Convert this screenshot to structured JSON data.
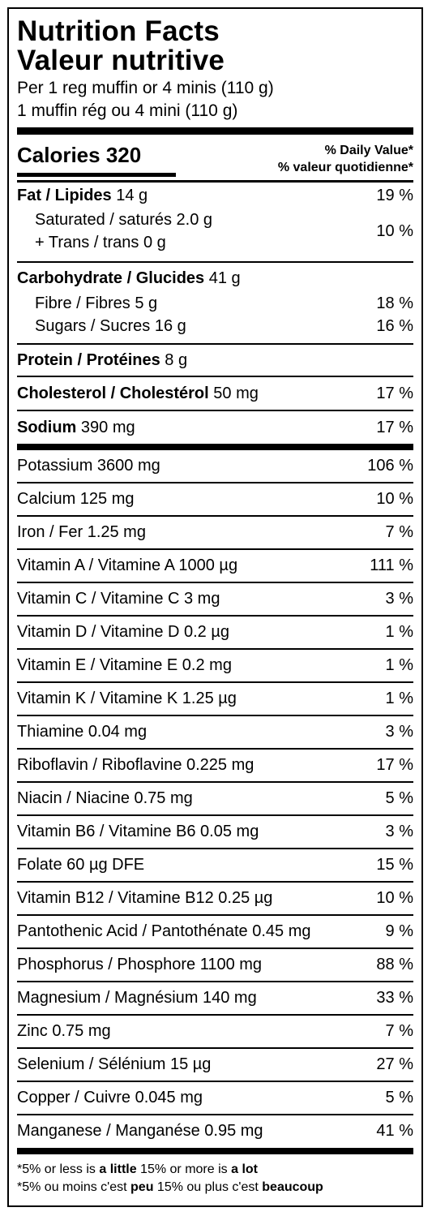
{
  "title_en": "Nutrition Facts",
  "title_fr": "Valeur nutritive",
  "serving_en": "Per 1 reg muffin or 4 minis (110 g)",
  "serving_fr": "1 muffin rég ou 4 mini (110 g)",
  "calories_label": "Calories 320",
  "dv_en": "% Daily Value*",
  "dv_fr": "% valeur quotidienne*",
  "fat": {
    "label": "Fat / Lipides",
    "amount": "14 g",
    "pct": "19 %"
  },
  "saturated": "Saturated / saturés 2.0 g",
  "trans": "+ Trans / trans 0 g",
  "sat_trans_pct": "10 %",
  "carb": {
    "label": "Carbohydrate / Glucides",
    "amount": "41 g"
  },
  "fibre": {
    "label": "Fibre / Fibres 5 g",
    "pct": "18 %"
  },
  "sugars": {
    "label": "Sugars / Sucres 16 g",
    "pct": "16 %"
  },
  "protein": {
    "label": "Protein / Protéines",
    "amount": "8 g"
  },
  "cholesterol": {
    "label": "Cholesterol / Cholestérol",
    "amount": "50 mg",
    "pct": "17 %"
  },
  "sodium": {
    "label": "Sodium",
    "amount": "390 mg",
    "pct": "17 %"
  },
  "nutrients": [
    {
      "label": "Potassium 3600 mg",
      "pct": "106 %"
    },
    {
      "label": "Calcium 125 mg",
      "pct": "10 %"
    },
    {
      "label": "Iron / Fer 1.25 mg",
      "pct": "7 %"
    },
    {
      "label": "Vitamin A / Vitamine A 1000 µg",
      "pct": "111 %"
    },
    {
      "label": "Vitamin C / Vitamine C 3 mg",
      "pct": "3 %"
    },
    {
      "label": "Vitamin D / Vitamine D 0.2 µg",
      "pct": "1 %"
    },
    {
      "label": "Vitamin E / Vitamine E 0.2 mg",
      "pct": "1 %"
    },
    {
      "label": "Vitamin K / Vitamine K 1.25 µg",
      "pct": "1 %"
    },
    {
      "label": "Thiamine 0.04 mg",
      "pct": "3 %"
    },
    {
      "label": "Riboflavin / Riboflavine 0.225 mg",
      "pct": "17 %"
    },
    {
      "label": "Niacin / Niacine 0.75 mg",
      "pct": "5 %"
    },
    {
      "label": "Vitamin B6 / Vitamine B6 0.05 mg",
      "pct": "3 %"
    },
    {
      "label": "Folate 60 µg DFE",
      "pct": "15 %"
    },
    {
      "label": "Vitamin B12 / Vitamine B12 0.25 µg",
      "pct": "10 %"
    },
    {
      "label": "Pantothenic Acid / Pantothénate 0.45 mg",
      "pct": "9 %"
    },
    {
      "label": "Phosphorus / Phosphore 1100 mg",
      "pct": "88 %"
    },
    {
      "label": "Magnesium / Magnésium 140 mg",
      "pct": "33 %"
    },
    {
      "label": "Zinc 0.75 mg",
      "pct": "7 %"
    },
    {
      "label": "Selenium / Sélénium 15 µg",
      "pct": "27 %"
    },
    {
      "label": "Copper / Cuivre 0.045 mg",
      "pct": "5 %"
    },
    {
      "label": "Manganese / Manganése 0.95 mg",
      "pct": "41 %"
    }
  ],
  "footnote_en": {
    "p1": "*5% or less is ",
    "b1": "a little",
    "p2": " 15% or more is ",
    "b2": "a lot"
  },
  "footnote_fr": {
    "p1": "*5% ou moins c'est ",
    "b1": "peu",
    "p2": " 15% ou plus c'est ",
    "b2": "beaucoup"
  }
}
